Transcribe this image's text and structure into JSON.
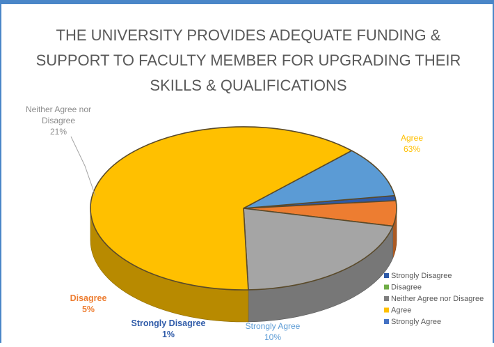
{
  "chart_data": {
    "type": "pie",
    "title_lines": [
      "THE UNIVERSITY PROVIDES ADEQUATE FUNDING &",
      "SUPPORT TO FACULTY MEMBER FOR UPGRADING THEIR",
      "SKILLS & QUALIFICATIONS"
    ],
    "three_d": true,
    "legend_position": "bottom-right",
    "slices": [
      {
        "name": "Strongly Disagree",
        "value": 1,
        "label_name": "Strongly Disagree",
        "label_value": "1%",
        "color": "#2e5aa8"
      },
      {
        "name": "Disagree",
        "value": 5,
        "label_name": "Disagree",
        "label_value": "5%",
        "color": "#ed7d31"
      },
      {
        "name": "Neither Agree nor Disagree",
        "value": 21,
        "label_name": "Neither Agree nor\nDisagree",
        "label_value": "21%",
        "color": "#a5a5a5"
      },
      {
        "name": "Agree",
        "value": 63,
        "label_name": "Agree",
        "label_value": "63%",
        "color": "#ffc000"
      },
      {
        "name": "Strongly Agree",
        "value": 10,
        "label_name": "Strongly Agree",
        "label_value": "10%",
        "color": "#5b9bd5"
      }
    ],
    "legend": [
      {
        "label": "Strongly Disagree",
        "color": "#2e5aa8"
      },
      {
        "label": "Disagree",
        "color": "#70ad47"
      },
      {
        "label": "Neither Agree nor Disagree",
        "color": "#7f7f7f"
      },
      {
        "label": "Agree",
        "color": "#ffc000"
      },
      {
        "label": "Strongly Agree",
        "color": "#4472c4"
      }
    ]
  }
}
